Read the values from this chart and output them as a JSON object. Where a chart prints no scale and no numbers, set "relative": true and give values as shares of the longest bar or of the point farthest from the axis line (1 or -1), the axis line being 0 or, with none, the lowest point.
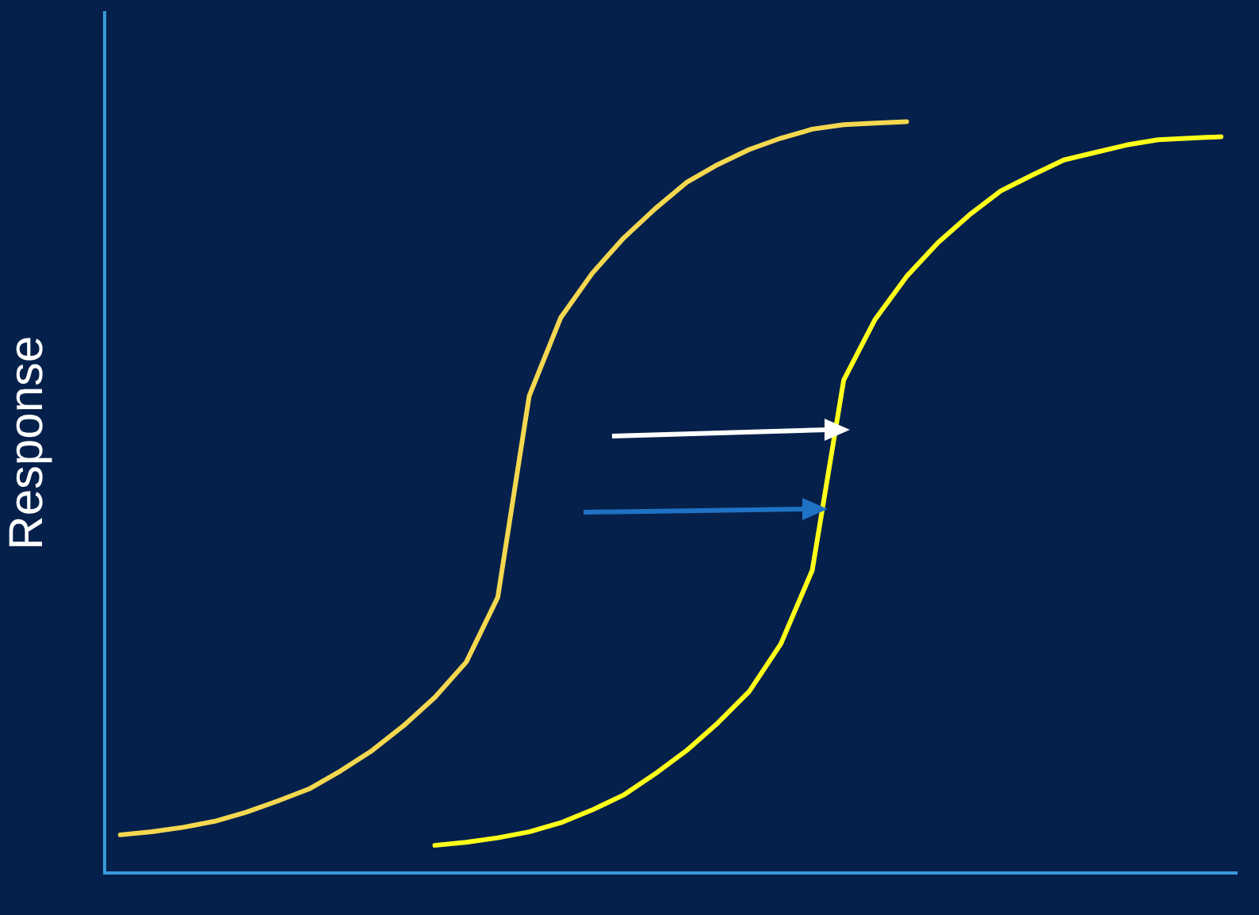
{
  "chart_data": {
    "type": "line",
    "ylabel": "Response",
    "relative": true,
    "legend": false,
    "marker": "none",
    "line_style": "solid",
    "categories": [
      null,
      null,
      null,
      null,
      null,
      null,
      null,
      null,
      null,
      null,
      null,
      null,
      null,
      null,
      null,
      null,
      null,
      null,
      null,
      null,
      null,
      null,
      null,
      null,
      null,
      null,
      null,
      null,
      null,
      null,
      null,
      null,
      null,
      null,
      null,
      null
    ],
    "series": [
      {
        "color": "#f5d850",
        "values": [
          0.051,
          0.055,
          0.061,
          0.069,
          0.081,
          0.096,
          0.112,
          0.136,
          0.163,
          0.196,
          0.234,
          0.281,
          0.367,
          0.635,
          0.739,
          0.798,
          0.845,
          0.884,
          0.919,
          0.943,
          0.963,
          0.978,
          0.99,
          0.996,
          0.998,
          1,
          null,
          null,
          null,
          null,
          null,
          null,
          null,
          null,
          null,
          null
        ]
      },
      {
        "color": "#ffff1a",
        "values": [
          null,
          null,
          null,
          null,
          null,
          null,
          null,
          null,
          null,
          null,
          0.037,
          0.041,
          0.047,
          0.055,
          0.067,
          0.084,
          0.104,
          0.132,
          0.163,
          0.2,
          0.242,
          0.305,
          0.403,
          0.656,
          0.737,
          0.794,
          0.839,
          0.876,
          0.908,
          0.929,
          0.949,
          0.959,
          0.969,
          0.976,
          0.978,
          0.98
        ]
      }
    ]
  }
}
